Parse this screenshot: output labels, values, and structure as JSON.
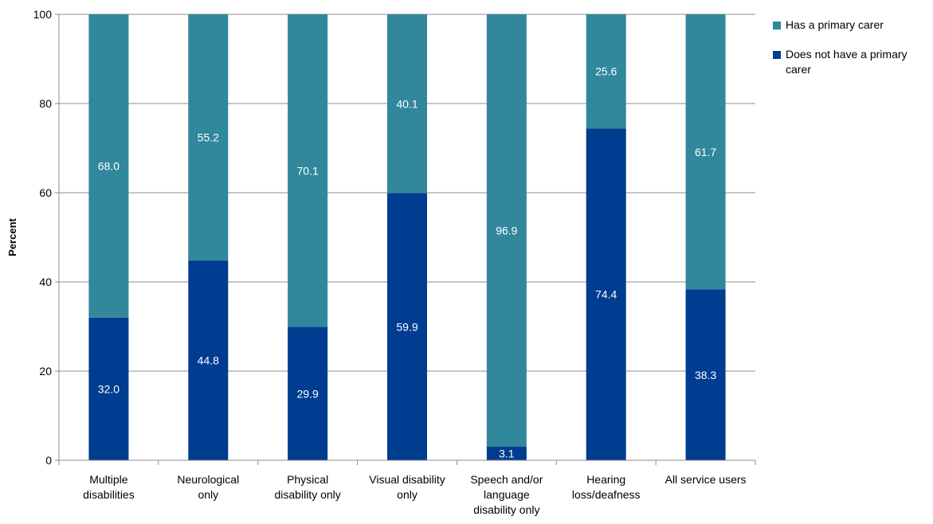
{
  "chart_data": {
    "type": "bar",
    "stacked": true,
    "categories": [
      [
        "Multiple",
        "disabilities"
      ],
      [
        "Neurological",
        "only"
      ],
      [
        "Physical",
        "disability only"
      ],
      [
        "Visual disability",
        "only"
      ],
      [
        "Speech and/or",
        "language",
        "disability only"
      ],
      [
        "Hearing",
        "loss/deafness"
      ],
      [
        "All service users"
      ]
    ],
    "series": [
      {
        "name": "Does not have a primary carer",
        "color": "#003c8f",
        "values": [
          32.0,
          44.8,
          29.9,
          59.9,
          3.1,
          74.4,
          38.3
        ],
        "labels": [
          "32.0",
          "44.8",
          "29.9",
          "59.9",
          "3.1",
          "74.4",
          "38.3"
        ]
      },
      {
        "name": "Has a primary carer",
        "color": "#31879c",
        "values": [
          68.0,
          55.2,
          70.1,
          40.1,
          96.9,
          25.6,
          61.7
        ],
        "labels": [
          "68.0",
          "55.2",
          "70.1",
          "40.1",
          "96.9",
          "25.6",
          "61.7"
        ]
      }
    ],
    "ylabel": "Percent",
    "xlabel": "",
    "ylim": [
      0,
      100
    ],
    "yticks": [
      "0",
      "20",
      "40",
      "60",
      "80",
      "100"
    ],
    "grid": true,
    "legend_position": "right"
  },
  "legend": {
    "items": [
      {
        "label": "Has a primary carer",
        "color": "#31879c"
      },
      {
        "label": "Does not have a primary carer",
        "color": "#003c8f"
      }
    ]
  }
}
